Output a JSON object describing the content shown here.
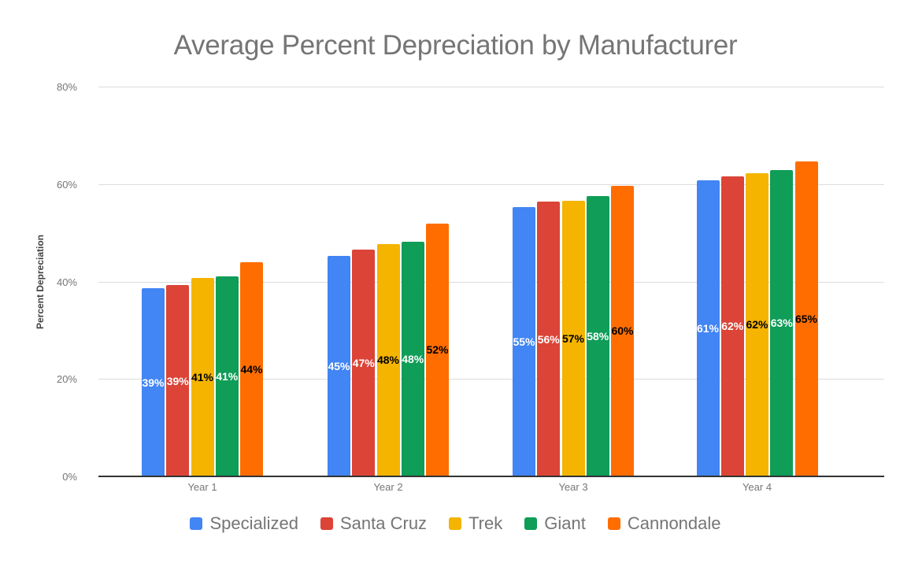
{
  "chart": {
    "title": "Average Percent Depreciation by Manufacturer",
    "y_axis_title": "Percent Depreciation"
  },
  "chart_data": {
    "type": "bar",
    "title": "Average Percent Depreciation by Manufacturer",
    "xlabel": "",
    "ylabel": "Percent Depreciation",
    "ylim": [
      0,
      80
    ],
    "grid": true,
    "legend_position": "bottom",
    "categories": [
      "Year 1",
      "Year 2",
      "Year 3",
      "Year 4"
    ],
    "y_ticks": [
      "0%",
      "20%",
      "40%",
      "60%",
      "80%"
    ],
    "series": [
      {
        "name": "Specialized",
        "color": "#4285F4",
        "label_color": "#ffffff",
        "values": [
          39,
          45,
          55,
          61
        ],
        "values_precise": [
          38.6,
          45.2,
          55.2,
          60.7
        ],
        "labels": [
          "39%",
          "45%",
          "55%",
          "61%"
        ]
      },
      {
        "name": "Santa Cruz",
        "color": "#DB4437",
        "label_color": "#ffffff",
        "values": [
          39,
          47,
          56,
          62
        ],
        "values_precise": [
          39.2,
          46.6,
          56.4,
          61.6
        ],
        "labels": [
          "39%",
          "47%",
          "56%",
          "62%"
        ]
      },
      {
        "name": "Trek",
        "color": "#F4B400",
        "label_color": "#000000",
        "values": [
          41,
          48,
          57,
          62
        ],
        "values_precise": [
          40.7,
          47.7,
          56.6,
          62.3
        ],
        "labels": [
          "41%",
          "48%",
          "57%",
          "62%"
        ]
      },
      {
        "name": "Giant",
        "color": "#0F9D58",
        "label_color": "#ffffff",
        "values": [
          41,
          48,
          58,
          63
        ],
        "values_precise": [
          41.1,
          48.1,
          57.5,
          62.9
        ],
        "labels": [
          "41%",
          "48%",
          "58%",
          "63%"
        ]
      },
      {
        "name": "Cannondale",
        "color": "#FF6D01",
        "label_color": "#000000",
        "values": [
          44,
          52,
          60,
          65
        ],
        "values_precise": [
          44.0,
          51.9,
          59.7,
          64.6
        ],
        "labels": [
          "44%",
          "52%",
          "60%",
          "65%"
        ]
      }
    ]
  }
}
